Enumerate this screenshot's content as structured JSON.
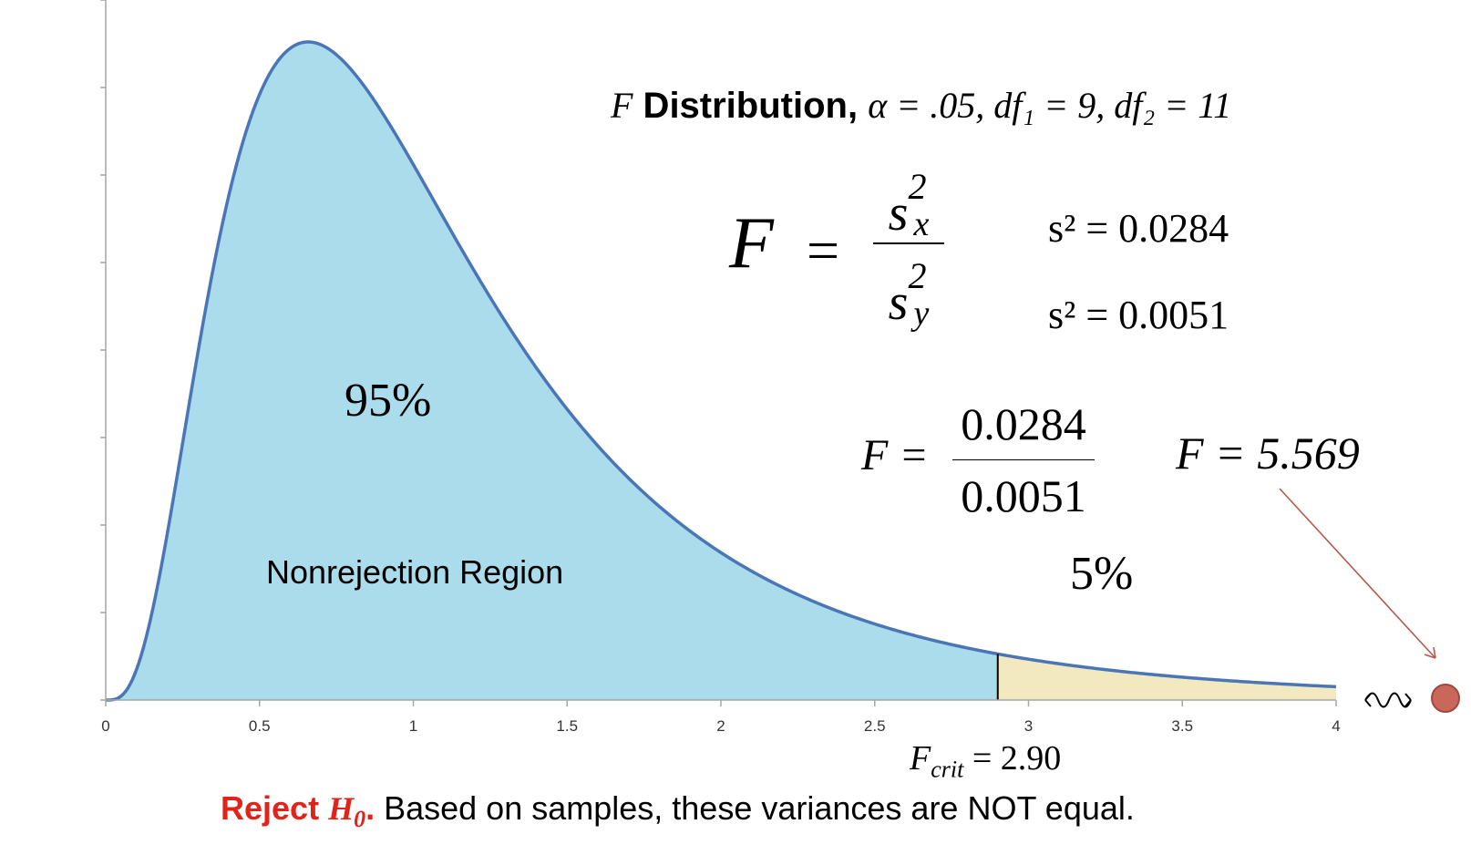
{
  "chart_data": {
    "type": "area",
    "distribution": "F",
    "df1": 9,
    "df2": 11,
    "xlim": [
      0,
      4
    ],
    "x_ticks": [
      0,
      0.5,
      1,
      1.5,
      2,
      2.5,
      3,
      3.5,
      4
    ],
    "x_tick_labels": [
      "0",
      "0.5",
      "1",
      "1.5",
      "2",
      "2.5",
      "3",
      "3.5",
      "4"
    ],
    "critical_value": 2.9,
    "regions": [
      {
        "name": "Nonrejection Region",
        "from": 0,
        "to": 2.9,
        "color": "#aadcec",
        "label": "95%"
      },
      {
        "name": "Rejection Region",
        "from": 2.9,
        "to": 4,
        "color": "#f3e9c1",
        "label": "5%"
      }
    ],
    "curve_color": "#4a76b8",
    "test_statistic": 5.569,
    "marker_color": "#c9675a",
    "arrow_color": "#b5584c"
  },
  "title": {
    "f": "F",
    "word": " Distribution,",
    "rest": "α = .05, df₁ = 9, df₂ = 11"
  },
  "formula": {
    "F": "F",
    "eq": "=",
    "num_s": "s",
    "num_sup": "2",
    "num_sub": "x",
    "den_s": "s",
    "den_sup": "2",
    "den_sub": "y"
  },
  "variances": {
    "line1": "s² = 0.0284",
    "line2": "s² = 0.0051"
  },
  "computation": {
    "F": "F =",
    "numerator": "0.0284",
    "denominator": "0.0051",
    "result": "F = 5.569"
  },
  "labels": {
    "pct_nonreject": "95%",
    "pct_reject": "5%",
    "nonrejection_region": "Nonrejection Region",
    "f_crit_F": "F",
    "f_crit_sub": "crit",
    "f_crit_value": " = 2.90"
  },
  "conclusion": {
    "reject": "Reject ",
    "h": "H",
    "h_sub": "0",
    "dot": ".",
    "text": " Based on samples, these variances are NOT equal."
  }
}
